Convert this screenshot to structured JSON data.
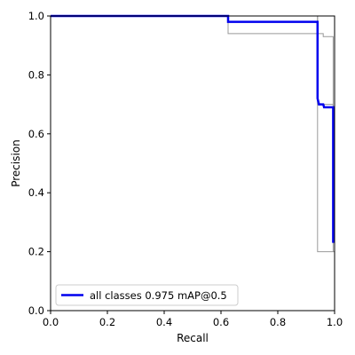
{
  "chart_data": {
    "type": "line",
    "xlabel": "Recall",
    "ylabel": "Precision",
    "xlim": [
      0,
      1
    ],
    "ylim": [
      0,
      1
    ],
    "x_ticks": [
      "0.0",
      "0.2",
      "0.4",
      "0.6",
      "0.8",
      "1.0"
    ],
    "y_ticks": [
      "0.0",
      "0.2",
      "0.4",
      "0.6",
      "0.8",
      "1.0"
    ],
    "grid": false,
    "legend_position": "lower-left",
    "series": [
      {
        "name": "all classes 0.975 mAP@0.5",
        "color": "#0000ee",
        "style": "bold",
        "points": [
          [
            0.0,
            1.0
          ],
          [
            0.625,
            1.0
          ],
          [
            0.625,
            0.98
          ],
          [
            0.94,
            0.98
          ],
          [
            0.94,
            0.72
          ],
          [
            0.945,
            0.7
          ],
          [
            0.96,
            0.7
          ],
          [
            0.963,
            0.69
          ],
          [
            0.995,
            0.69
          ],
          [
            0.995,
            0.23
          ]
        ]
      },
      {
        "color": "#999999",
        "style": "thin",
        "points": [
          [
            0.0,
            1.0
          ],
          [
            0.625,
            1.0
          ],
          [
            0.625,
            0.94
          ],
          [
            0.94,
            0.94
          ],
          [
            0.94,
            0.2
          ],
          [
            1.0,
            0.2
          ]
        ]
      },
      {
        "color": "#999999",
        "style": "thin",
        "points": [
          [
            0.0,
            1.0
          ],
          [
            0.94,
            1.0
          ],
          [
            0.94,
            0.94
          ],
          [
            0.96,
            0.94
          ],
          [
            0.96,
            0.93
          ],
          [
            0.995,
            0.93
          ],
          [
            0.995,
            0.2
          ]
        ]
      },
      {
        "color": "#999999",
        "style": "thin",
        "points": [
          [
            0.0,
            1.0
          ],
          [
            0.94,
            1.0
          ],
          [
            0.94,
            0.7
          ],
          [
            0.995,
            0.7
          ],
          [
            0.995,
            0.25
          ]
        ]
      }
    ]
  }
}
